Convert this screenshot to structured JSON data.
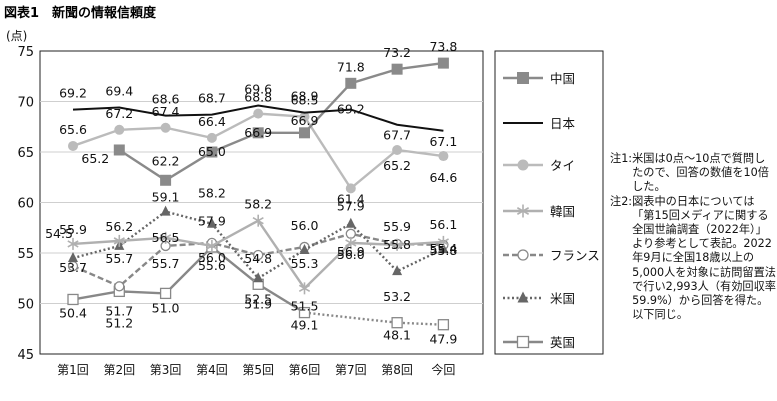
{
  "chart_data": {
    "type": "line",
    "title": "図表1　新聞の情報信頼度",
    "ylabel": "(点)",
    "xlabel": "",
    "ylim": [
      45,
      75
    ],
    "yticks": [
      45,
      50,
      55,
      60,
      65,
      70,
      75
    ],
    "categories": [
      "第1回",
      "第2回",
      "第3回",
      "第4回",
      "第5回",
      "第6回",
      "第7回",
      "第8回",
      "今回"
    ],
    "grid": true,
    "legend_position": "right",
    "series": [
      {
        "name": "中国",
        "color": "#8a8a8a",
        "marker": "square-filled",
        "dash": "solid",
        "values": [
          null,
          65.2,
          62.2,
          65.0,
          66.9,
          66.9,
          71.8,
          73.2,
          73.8
        ]
      },
      {
        "name": "日本",
        "color": "#111111",
        "marker": "none",
        "dash": "solid",
        "values": [
          69.2,
          69.4,
          68.6,
          68.7,
          69.6,
          68.9,
          69.2,
          67.7,
          67.1
        ]
      },
      {
        "name": "タイ",
        "color": "#bbbbbb",
        "marker": "circle-filled",
        "dash": "solid",
        "values": [
          65.6,
          67.2,
          67.4,
          66.4,
          68.8,
          68.5,
          61.4,
          65.2,
          64.6
        ]
      },
      {
        "name": "韓国",
        "color": "#b0b0b0",
        "marker": "asterisk",
        "dash": "solid",
        "values": [
          55.9,
          56.2,
          56.5,
          55.7,
          58.2,
          51.5,
          56.0,
          55.8,
          56.1
        ]
      },
      {
        "name": "フランス",
        "color": "#888888",
        "marker": "circle-open",
        "dash": "dashed",
        "values": [
          53.7,
          51.7,
          55.7,
          56.0,
          54.8,
          55.6,
          56.9,
          55.9,
          55.8
        ]
      },
      {
        "name": "米国",
        "color": "#666666",
        "marker": "triangle-filled",
        "dash": "dotted",
        "values": [
          54.5,
          55.7,
          59.1,
          57.9,
          52.5,
          55.3,
          57.9,
          53.2,
          55.4
        ]
      },
      {
        "name": "英国",
        "color": "#888888",
        "marker": "square-open",
        "dash": "solid-then-dotted",
        "values": [
          50.4,
          51.2,
          51.0,
          55.6,
          51.9,
          49.1,
          null,
          48.1,
          47.9
        ]
      }
    ],
    "data_labels": [
      {
        "text": "69.2",
        "x": 0,
        "y": 69.2
      },
      {
        "text": "69.4",
        "x": 1,
        "y": 69.4
      },
      {
        "text": "68.6",
        "x": 2,
        "y": 68.6
      },
      {
        "text": "68.7",
        "x": 3,
        "y": 68.7
      },
      {
        "text": "69.6",
        "x": 4,
        "y": 69.6
      },
      {
        "text": "68.9",
        "x": 5,
        "y": 68.9
      },
      {
        "text": "71.8",
        "x": 6,
        "y": 71.8
      },
      {
        "text": "73.2",
        "x": 7,
        "y": 73.2
      },
      {
        "text": "73.8",
        "x": 8,
        "y": 73.8
      },
      {
        "text": "65.6",
        "x": 0,
        "y": 65.6
      },
      {
        "text": "67.2",
        "x": 1,
        "y": 67.2
      },
      {
        "text": "67.4",
        "x": 2,
        "y": 67.4
      },
      {
        "text": "66.4",
        "x": 3,
        "y": 66.4
      },
      {
        "text": "68.8",
        "x": 4,
        "y": 68.8
      },
      {
        "text": "68.5",
        "x": 5,
        "y": 68.5
      },
      {
        "text": "69.2",
        "x": 6,
        "y": 69.2
      },
      {
        "text": "67.7",
        "x": 7,
        "y": 67.7
      },
      {
        "text": "67.1",
        "x": 8,
        "y": 67.1
      },
      {
        "text": "65.2",
        "x": 1,
        "y": 65.2
      },
      {
        "text": "62.2",
        "x": 2,
        "y": 62.2
      },
      {
        "text": "65.0",
        "x": 3,
        "y": 65.0
      },
      {
        "text": "66.9",
        "x": 4,
        "y": 66.9
      },
      {
        "text": "66.9",
        "x": 5,
        "y": 66.9
      },
      {
        "text": "61.4",
        "x": 6,
        "y": 61.4
      },
      {
        "text": "65.2",
        "x": 7,
        "y": 65.2
      },
      {
        "text": "64.6",
        "x": 8,
        "y": 64.6
      },
      {
        "text": "55.9",
        "x": 0,
        "y": 55.9
      },
      {
        "text": "56.2",
        "x": 1,
        "y": 56.2
      },
      {
        "text": "59.1",
        "x": 2,
        "y": 59.1
      },
      {
        "text": "58.2",
        "x": 3,
        "y": 58.2
      },
      {
        "text": "58.2",
        "x": 4,
        "y": 58.2
      },
      {
        "text": "56.0",
        "x": 5,
        "y": 56.0
      },
      {
        "text": "57.9",
        "x": 6,
        "y": 57.9
      },
      {
        "text": "55.9",
        "x": 7,
        "y": 55.9
      },
      {
        "text": "56.1",
        "x": 8,
        "y": 56.1
      },
      {
        "text": "56.5",
        "x": 2,
        "y": 56.5
      },
      {
        "text": "57.9",
        "x": 3,
        "y": 57.9
      },
      {
        "text": "55.8",
        "x": 7,
        "y": 55.8
      },
      {
        "text": "54.5",
        "x": 0,
        "y": 54.5
      },
      {
        "text": "53.7",
        "x": 0,
        "y": 53.7
      },
      {
        "text": "55.7",
        "x": 1,
        "y": 55.7
      },
      {
        "text": "55.7",
        "x": 2,
        "y": 55.7
      },
      {
        "text": "54.8",
        "x": 4,
        "y": 54.8
      },
      {
        "text": "55.3",
        "x": 5,
        "y": 55.3
      },
      {
        "text": "56.9",
        "x": 6,
        "y": 56.9
      },
      {
        "text": "55.8",
        "x": 8,
        "y": 55.8
      },
      {
        "text": "56.0",
        "x": 3,
        "y": 56.0
      },
      {
        "text": "55.6",
        "x": 3,
        "y": 55.6
      },
      {
        "text": "52.5",
        "x": 4,
        "y": 52.5
      },
      {
        "text": "51.5",
        "x": 5,
        "y": 51.5
      },
      {
        "text": "56.0",
        "x": 6,
        "y": 56.0
      },
      {
        "text": "53.2",
        "x": 7,
        "y": 53.2
      },
      {
        "text": "55.4",
        "x": 8,
        "y": 55.4
      },
      {
        "text": "50.4",
        "x": 0,
        "y": 50.4
      },
      {
        "text": "51.7",
        "x": 1,
        "y": 51.7
      },
      {
        "text": "51.2",
        "x": 1,
        "y": 51.2
      },
      {
        "text": "51.0",
        "x": 2,
        "y": 51.0
      },
      {
        "text": "51.9",
        "x": 4,
        "y": 51.9
      },
      {
        "text": "49.1",
        "x": 5,
        "y": 49.1
      },
      {
        "text": "48.1",
        "x": 7,
        "y": 48.1
      },
      {
        "text": "47.9",
        "x": 8,
        "y": 47.9
      }
    ]
  },
  "notes": [
    {
      "label": "注1:",
      "text": "米国は0点～10点で質問したので、回答の数値を10倍した。"
    },
    {
      "label": "注2:",
      "text": "図表中の日本については「第15回メディアに関する全国世論調査（2022年）」より参考として表記。2022年9月に全国18歳以上の5,000人を対象に訪問留置法で行い2,993人（有効回収率59.9%）から回答を得た。以下同じ。"
    }
  ]
}
